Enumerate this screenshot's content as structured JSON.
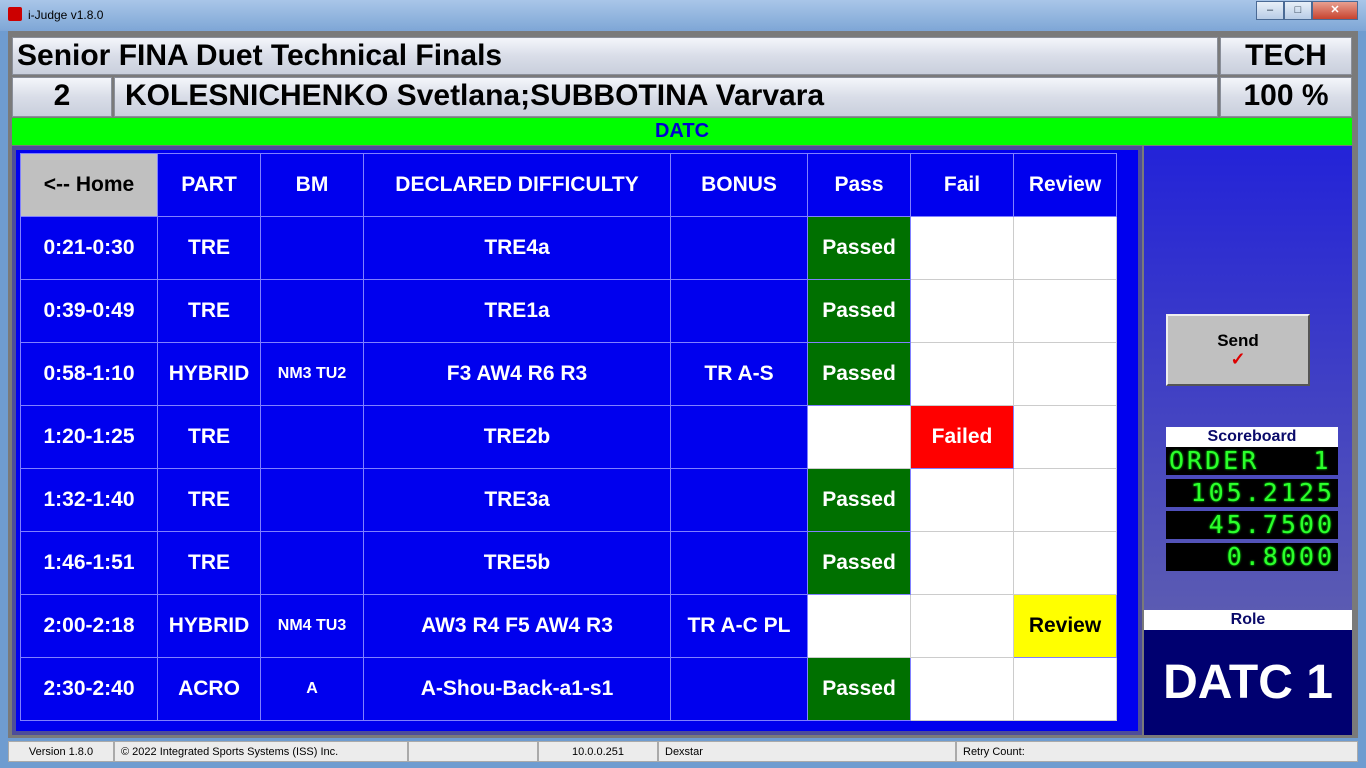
{
  "window": {
    "title": "i-Judge v1.8.0",
    "min": "–",
    "max": "□",
    "close": "✕"
  },
  "header": {
    "event": "Senior FINA Duet Technical Finals",
    "type": "TECH",
    "order": "2",
    "athletes": "KOLESNICHENKO Svetlana;SUBBOTINA Varvara",
    "percent": "100 %"
  },
  "panel_label": "DATC",
  "table": {
    "headers": [
      "<-- Home",
      "PART",
      "BM",
      "DECLARED DIFFICULTY",
      "BONUS",
      "Pass",
      "Fail",
      "Review"
    ],
    "rows": [
      {
        "time": "0:21-0:30",
        "part": "TRE",
        "bm": "",
        "dd": "TRE4a",
        "bonus": "",
        "status": "pass",
        "label": "Passed"
      },
      {
        "time": "0:39-0:49",
        "part": "TRE",
        "bm": "",
        "dd": "TRE1a",
        "bonus": "",
        "status": "pass",
        "label": "Passed"
      },
      {
        "time": "0:58-1:10",
        "part": "HYBRID",
        "bm": "NM3 TU2",
        "dd": "F3 AW4 R6 R3",
        "bonus": "TR A-S",
        "status": "pass",
        "label": "Passed"
      },
      {
        "time": "1:20-1:25",
        "part": "TRE",
        "bm": "",
        "dd": "TRE2b",
        "bonus": "",
        "status": "fail",
        "label": "Failed"
      },
      {
        "time": "1:32-1:40",
        "part": "TRE",
        "bm": "",
        "dd": "TRE3a",
        "bonus": "",
        "status": "pass",
        "label": "Passed"
      },
      {
        "time": "1:46-1:51",
        "part": "TRE",
        "bm": "",
        "dd": "TRE5b",
        "bonus": "",
        "status": "pass",
        "label": "Passed"
      },
      {
        "time": "2:00-2:18",
        "part": "HYBRID",
        "bm": "NM4 TU3",
        "dd": "AW3 R4 F5 AW4 R3",
        "bonus": "TR A-C PL",
        "status": "review",
        "label": "Review"
      },
      {
        "time": "2:30-2:40",
        "part": "ACRO",
        "bm": "A",
        "dd": "A-Shou-Back-a1-s1",
        "bonus": "",
        "status": "pass",
        "label": "Passed"
      }
    ]
  },
  "send": {
    "label": "Send",
    "icon": "checkmark-icon",
    "check": "✓"
  },
  "scoreboard": {
    "title": "Scoreboard",
    "lines": [
      "ORDER   1",
      "105.2125",
      "45.7500",
      "0.8000"
    ]
  },
  "role": {
    "label": "Role",
    "value": "DATC 1"
  },
  "status_bar": {
    "version": "Version 1.8.0",
    "copyright": "© 2022 Integrated Sports Systems (ISS) Inc.",
    "blank": "",
    "ip": "10.0.0.251",
    "host": "Dexstar",
    "retry": "Retry Count:"
  },
  "colors": {
    "pass": "#007000",
    "fail": "#ff0000",
    "review": "#ffff00",
    "panel": "#0000ee",
    "bar": "#00ff00"
  }
}
